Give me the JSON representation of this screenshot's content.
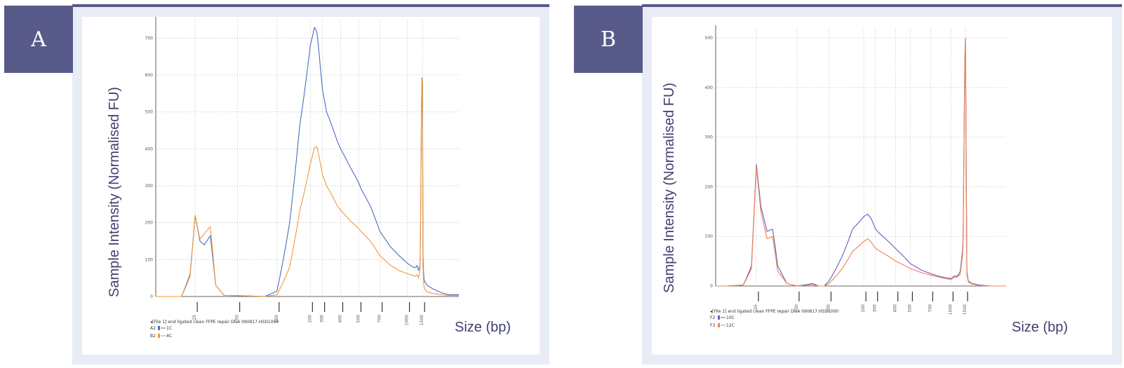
{
  "panel_a": {
    "badge": "A",
    "ylabel": "Sample Intensity (Normalised FU)",
    "xlabel": "Size (bp)",
    "file_caption": "◂[File 1] end ligated clean FFPE repair DNA 090817.HSD1000",
    "legend": [
      {
        "well": "A2",
        "sample": "1C",
        "color": "#4a6cc4"
      },
      {
        "well": "B2",
        "sample": "4C",
        "color": "#f3983a"
      }
    ]
  },
  "panel_b": {
    "badge": "B",
    "ylabel": "Sample Intensity (Normalised FU)",
    "xlabel": "Size (bp)",
    "file_caption": "◂[File 1] end ligated clean FFPE repair DNA 090817.HSD1000",
    "legend": [
      {
        "well": "F2",
        "sample": "10C",
        "color": "#6a5ac0"
      },
      {
        "well": "F3",
        "sample": "12C",
        "color": "#f08050"
      }
    ]
  },
  "chart_data": [
    {
      "type": "line",
      "ylabel": "Sample Intensity (Normalised FU)",
      "xlabel": "Size (bp)",
      "ylim": [
        0,
        750
      ],
      "yticks": [
        0,
        100,
        200,
        300,
        400,
        500,
        600,
        700
      ],
      "xticks": [
        "25",
        "50",
        "100",
        "200",
        "300",
        "400",
        "500",
        "700",
        "1000",
        "1500"
      ],
      "x_ladder": [
        25,
        50,
        100,
        200,
        300,
        400,
        500,
        700,
        1000,
        1500
      ],
      "x_ladder_pos": [
        0.13,
        0.27,
        0.4,
        0.51,
        0.55,
        0.61,
        0.67,
        0.74,
        0.83,
        0.88
      ],
      "grid": true,
      "series": [
        {
          "name": "1C",
          "color": "#4a6cc4",
          "x": [
            20,
            23,
            25,
            27,
            29,
            32,
            35,
            40,
            55,
            80,
            100,
            130,
            160,
            200,
            230,
            250,
            280,
            320,
            380,
            450,
            520,
            600,
            700,
            800,
            900,
            1000,
            1150,
            1250,
            1300,
            1350,
            1400,
            1420,
            1470,
            1500,
            1520,
            1550,
            1600,
            1700,
            2000,
            2500,
            3000
          ],
          "y": [
            0,
            60,
            220,
            150,
            140,
            165,
            30,
            3,
            2,
            0,
            15,
            200,
            460,
            680,
            730,
            715,
            620,
            500,
            420,
            350,
            290,
            245,
            175,
            135,
            110,
            90,
            80,
            78,
            85,
            70,
            80,
            150,
            600,
            580,
            120,
            50,
            40,
            30,
            20,
            10,
            5
          ]
        },
        {
          "name": "4C",
          "color": "#f3983a",
          "x": [
            20,
            23,
            25,
            27,
            29,
            32,
            35,
            40,
            55,
            80,
            100,
            130,
            160,
            200,
            230,
            250,
            280,
            320,
            380,
            450,
            520,
            600,
            700,
            800,
            900,
            1000,
            1150,
            1250,
            1300,
            1350,
            1400,
            1420,
            1470,
            1500,
            1520,
            1550,
            1600,
            1700,
            2000,
            2500,
            3000
          ],
          "y": [
            0,
            55,
            220,
            155,
            170,
            190,
            30,
            3,
            2,
            0,
            5,
            80,
            230,
            360,
            405,
            405,
            360,
            300,
            245,
            205,
            175,
            150,
            110,
            85,
            70,
            62,
            57,
            55,
            60,
            50,
            65,
            150,
            600,
            570,
            90,
            30,
            20,
            12,
            8,
            5,
            3
          ]
        }
      ]
    },
    {
      "type": "line",
      "ylabel": "Sample Intensity (Normalised FU)",
      "xlabel": "Size (bp)",
      "ylim": [
        0,
        520
      ],
      "yticks": [
        0,
        100,
        200,
        300,
        400,
        500
      ],
      "xticks": [
        "25",
        "50",
        "100",
        "200",
        "300",
        "400",
        "500",
        "700",
        "1000",
        "1500"
      ],
      "x_ladder": [
        25,
        50,
        100,
        200,
        300,
        400,
        500,
        700,
        1000,
        1500
      ],
      "x_ladder_pos": [
        0.14,
        0.28,
        0.39,
        0.51,
        0.55,
        0.62,
        0.67,
        0.74,
        0.81,
        0.86
      ],
      "grid": true,
      "series": [
        {
          "name": "10C",
          "color": "#6a5ac0",
          "x": [
            15,
            20,
            23,
            25,
            27,
            30,
            33,
            36,
            42,
            50,
            70,
            80,
            90,
            100,
            130,
            160,
            200,
            230,
            260,
            320,
            400,
            500,
            600,
            700,
            800,
            900,
            1000,
            1100,
            1200,
            1300,
            1400,
            1470,
            1500,
            1520,
            1560,
            1620,
            1800,
            2200,
            3000
          ],
          "y": [
            0,
            2,
            40,
            245,
            160,
            110,
            115,
            40,
            5,
            0,
            5,
            0,
            0,
            10,
            60,
            115,
            140,
            145,
            135,
            105,
            75,
            45,
            32,
            25,
            20,
            17,
            15,
            20,
            20,
            30,
            80,
            450,
            500,
            360,
            30,
            10,
            5,
            2,
            0
          ]
        },
        {
          "name": "12C",
          "color": "#f08050",
          "x": [
            15,
            20,
            23,
            25,
            27,
            30,
            33,
            36,
            42,
            50,
            70,
            80,
            90,
            100,
            130,
            160,
            200,
            230,
            260,
            320,
            400,
            500,
            600,
            700,
            800,
            900,
            1000,
            1100,
            1200,
            1300,
            1400,
            1470,
            1500,
            1520,
            1560,
            1620,
            1800,
            2200,
            3000
          ],
          "y": [
            0,
            2,
            35,
            240,
            150,
            95,
            100,
            30,
            5,
            0,
            3,
            0,
            0,
            5,
            35,
            70,
            90,
            95,
            88,
            70,
            50,
            35,
            27,
            22,
            18,
            15,
            13,
            18,
            18,
            25,
            70,
            450,
            500,
            360,
            25,
            8,
            4,
            1,
            0
          ]
        }
      ]
    }
  ]
}
